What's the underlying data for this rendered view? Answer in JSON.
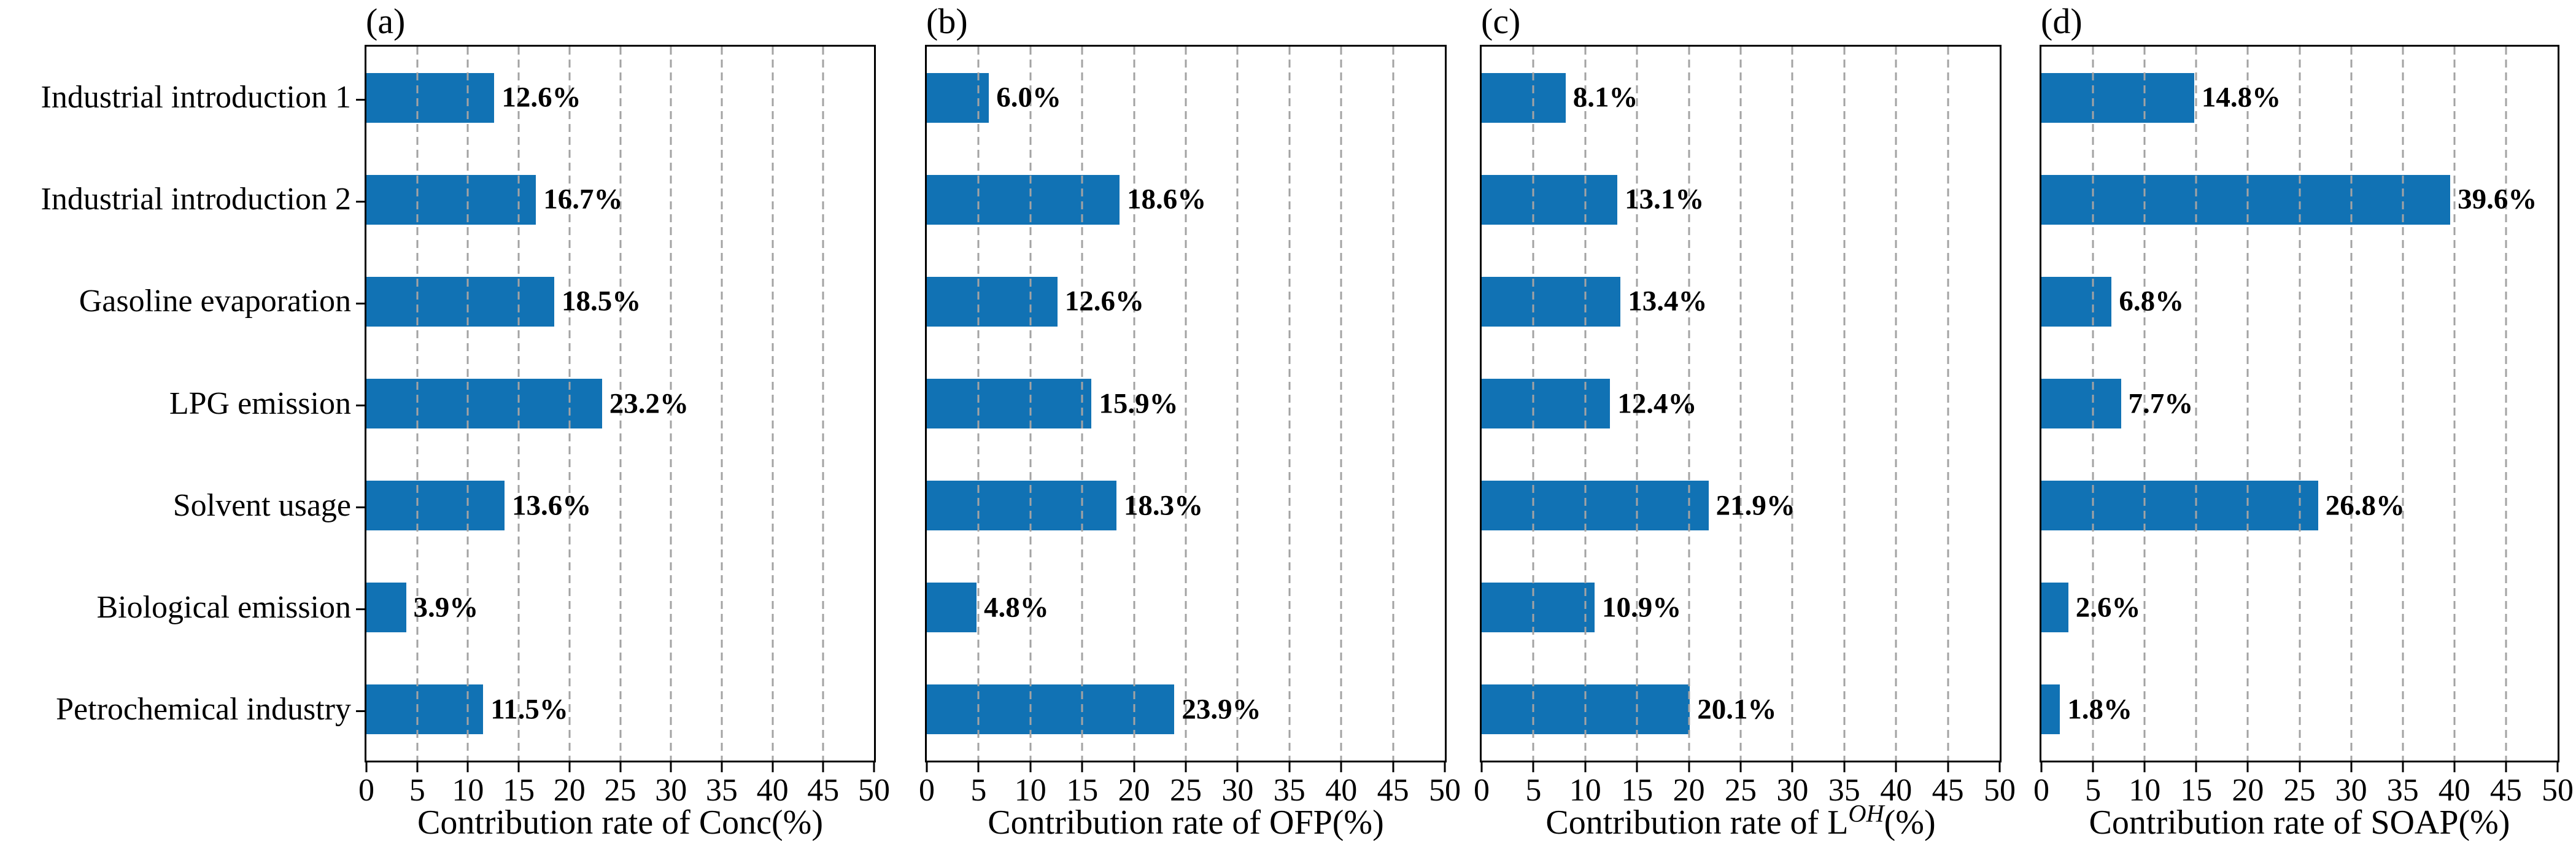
{
  "figure": {
    "bar_color": "#1172b4",
    "grid_color": "#a3a3a3",
    "spine_color": "#000000",
    "text_color": "#000000",
    "background_color": "#ffffff"
  },
  "chart_data": [
    {
      "type": "bar",
      "orientation": "horizontal",
      "title": "(a)",
      "xlabel": "Contribution rate of Conc(%)",
      "xlabel_parts": {
        "prefix": "Contribution rate of Conc(%)",
        "sup": "",
        "suffix": ""
      },
      "categories": [
        "Industrial introduction 1",
        "Industrial introduction 2",
        "Gasoline evaporation",
        "LPG emission",
        "Solvent usage",
        "Biological emission",
        "Petrochemical industry"
      ],
      "values": [
        12.6,
        16.7,
        18.5,
        23.2,
        13.6,
        3.9,
        11.5
      ],
      "data_labels": [
        "12.6%",
        "16.7%",
        "18.5%",
        "23.2%",
        "13.6%",
        "3.9%",
        "11.5%"
      ],
      "xlim": [
        0,
        50
      ],
      "xticks": [
        "0",
        "5",
        "10",
        "15",
        "20",
        "25",
        "30",
        "35",
        "40",
        "45",
        "50"
      ],
      "grid": "vertical-dashed"
    },
    {
      "type": "bar",
      "orientation": "horizontal",
      "title": "(b)",
      "xlabel": "Contribution rate of OFP(%)",
      "xlabel_parts": {
        "prefix": "Contribution rate of OFP(%)",
        "sup": "",
        "suffix": ""
      },
      "categories": [
        "Industrial introduction 1",
        "Industrial introduction 2",
        "Gasoline evaporation",
        "LPG emission",
        "Solvent usage",
        "Biological emission",
        "Petrochemical industry"
      ],
      "values": [
        6.0,
        18.6,
        12.6,
        15.9,
        18.3,
        4.8,
        23.9
      ],
      "data_labels": [
        "6.0%",
        "18.6%",
        "12.6%",
        "15.9%",
        "18.3%",
        "4.8%",
        "23.9%"
      ],
      "xlim": [
        0,
        50
      ],
      "xticks": [
        "0",
        "5",
        "10",
        "15",
        "20",
        "25",
        "30",
        "35",
        "40",
        "45",
        "50"
      ],
      "grid": "vertical-dashed"
    },
    {
      "type": "bar",
      "orientation": "horizontal",
      "title": "(c)",
      "xlabel": "Contribution rate of L^OH(%)",
      "xlabel_parts": {
        "prefix": "Contribution rate of L",
        "sup": "OH",
        "suffix": "(%)"
      },
      "categories": [
        "Industrial introduction 1",
        "Industrial introduction 2",
        "Gasoline evaporation",
        "LPG emission",
        "Solvent usage",
        "Biological emission",
        "Petrochemical industry"
      ],
      "values": [
        8.1,
        13.1,
        13.4,
        12.4,
        21.9,
        10.9,
        20.1
      ],
      "data_labels": [
        "8.1%",
        "13.1%",
        "13.4%",
        "12.4%",
        "21.9%",
        "10.9%",
        "20.1%"
      ],
      "xlim": [
        0,
        50
      ],
      "xticks": [
        "0",
        "5",
        "10",
        "15",
        "20",
        "25",
        "30",
        "35",
        "40",
        "45",
        "50"
      ],
      "grid": "vertical-dashed"
    },
    {
      "type": "bar",
      "orientation": "horizontal",
      "title": "(d)",
      "xlabel": "Contribution rate of SOAP(%)",
      "xlabel_parts": {
        "prefix": "Contribution rate of SOAP(%)",
        "sup": "",
        "suffix": ""
      },
      "categories": [
        "Industrial introduction 1",
        "Industrial introduction 2",
        "Gasoline evaporation",
        "LPG emission",
        "Solvent usage",
        "Biological emission",
        "Petrochemical industry"
      ],
      "values": [
        14.8,
        39.6,
        6.8,
        7.7,
        26.8,
        2.6,
        1.8
      ],
      "data_labels": [
        "14.8%",
        "39.6%",
        "6.8%",
        "7.7%",
        "26.8%",
        "2.6%",
        "1.8%"
      ],
      "xlim": [
        0,
        50
      ],
      "xticks": [
        "0",
        "5",
        "10",
        "15",
        "20",
        "25",
        "30",
        "35",
        "40",
        "45",
        "50"
      ],
      "grid": "vertical-dashed"
    }
  ]
}
